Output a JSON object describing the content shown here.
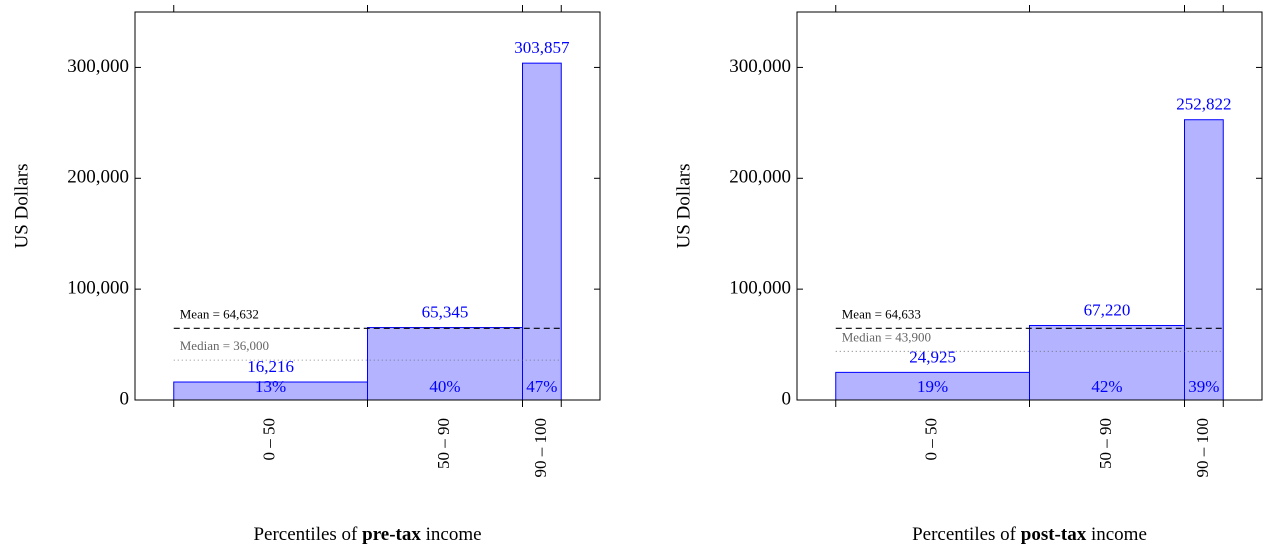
{
  "chart_data": [
    {
      "type": "histogram",
      "bins": [
        0,
        50,
        90,
        100
      ],
      "values": [
        16216,
        65345,
        303857
      ],
      "value_labels": [
        "16,216",
        "65,345",
        "303,857"
      ],
      "categories": [
        "0 – 50",
        "50 – 90",
        "90 – 100"
      ],
      "share_labels": [
        "13%",
        "40%",
        "47%"
      ],
      "xlim": [
        -10,
        110
      ],
      "xticks": [
        0,
        50,
        90,
        100
      ],
      "ylim": [
        0,
        350000
      ],
      "yticks": [
        0,
        {
          "value": 100000,
          "label": "100,000"
        },
        {
          "value": 200000,
          "label": "200,000"
        },
        {
          "value": 300000,
          "label": "300,000"
        }
      ],
      "ylabel": "US Dollars",
      "xlabel_parts": [
        "Percentiles of ",
        "pre-tax",
        " income"
      ],
      "color": "#b3b3ff",
      "edge_color": "#0000ff",
      "lines": [
        {
          "label": "Mean = 64,632",
          "value": 64632,
          "style": "dashed",
          "color": "#000000"
        },
        {
          "label": "Median = 36,000",
          "value": 36000,
          "style": "dotted",
          "color": "#666666"
        }
      ]
    },
    {
      "type": "histogram",
      "bins": [
        0,
        50,
        90,
        100
      ],
      "values": [
        24925,
        67220,
        252822
      ],
      "value_labels": [
        "24,925",
        "67,220",
        "252,822"
      ],
      "categories": [
        "0 – 50",
        "50 – 90",
        "90 – 100"
      ],
      "share_labels": [
        "19%",
        "42%",
        "39%"
      ],
      "xlim": [
        -10,
        110
      ],
      "xticks": [
        0,
        50,
        90,
        100
      ],
      "ylim": [
        0,
        350000
      ],
      "yticks": [
        0,
        {
          "value": 100000,
          "label": "100,000"
        },
        {
          "value": 200000,
          "label": "200,000"
        },
        {
          "value": 300000,
          "label": "300,000"
        }
      ],
      "ylabel": "US Dollars",
      "xlabel_parts": [
        "Percentiles of ",
        "post-tax",
        " income"
      ],
      "color": "#b3b3ff",
      "edge_color": "#0000ff",
      "lines": [
        {
          "label": "Mean = 64,633",
          "value": 64633,
          "style": "dashed",
          "color": "#000000"
        },
        {
          "label": "Median = 43,900",
          "value": 43900,
          "style": "dotted",
          "color": "#666666"
        }
      ]
    }
  ]
}
